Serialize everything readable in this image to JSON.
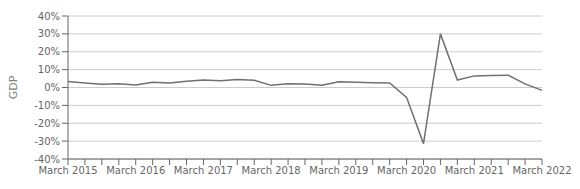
{
  "chart_data": {
    "type": "line",
    "ylabel": "GDP",
    "categories": [
      "March 2015",
      null,
      null,
      null,
      "March 2016",
      null,
      null,
      null,
      "March 2017",
      null,
      null,
      null,
      "March 2018",
      null,
      null,
      null,
      "March 2019",
      null,
      null,
      null,
      "March 2020",
      null,
      null,
      null,
      "March 2021",
      null,
      null,
      null,
      "March 2022"
    ],
    "values": [
      3.3,
      2.5,
      1.8,
      2.1,
      1.4,
      2.9,
      2.5,
      3.5,
      4.2,
      3.8,
      4.5,
      4.0,
      1.2,
      2.1,
      2.0,
      1.3,
      3.2,
      2.9,
      2.7,
      2.5,
      -5.5,
      -31.4,
      30.0,
      4.2,
      6.5,
      6.7,
      6.9,
      2.0,
      -1.6
    ],
    "color": "#707070",
    "ylim": [
      -40,
      40
    ],
    "yticks": [
      {
        "value": -40,
        "label": "-40%"
      },
      {
        "value": -30,
        "label": "-30%"
      },
      {
        "value": -20,
        "label": "-20%"
      },
      {
        "value": -10,
        "label": "-10%"
      },
      {
        "value": 0,
        "label": "0%"
      },
      {
        "value": 10,
        "label": "10%"
      },
      {
        "value": 20,
        "label": "20%"
      },
      {
        "value": 30,
        "label": "30%"
      },
      {
        "value": 40,
        "label": "40%"
      }
    ],
    "grid": true
  }
}
